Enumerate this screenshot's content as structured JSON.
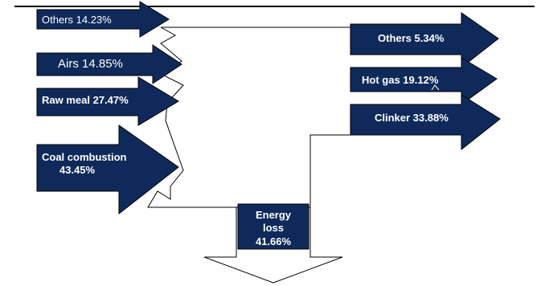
{
  "colors": {
    "arrow_fill": "#0f2a5a",
    "outline": "#000000",
    "background": "#ffffff",
    "text": "#ffffff"
  },
  "inputs": [
    {
      "text": "Others 14.23%"
    },
    {
      "text": "Airs 14.85%"
    },
    {
      "text": "Raw meal 27.47%"
    },
    {
      "line1": "Coal combustion",
      "line2": "43.45%"
    }
  ],
  "outputs": [
    {
      "text": "Others 5.34%"
    },
    {
      "text": "Hot gas 19.12%"
    },
    {
      "text": "Clinker 33.88%"
    }
  ],
  "loss": {
    "line1": "Energy",
    "line2": "loss",
    "line3": "41.66%"
  }
}
